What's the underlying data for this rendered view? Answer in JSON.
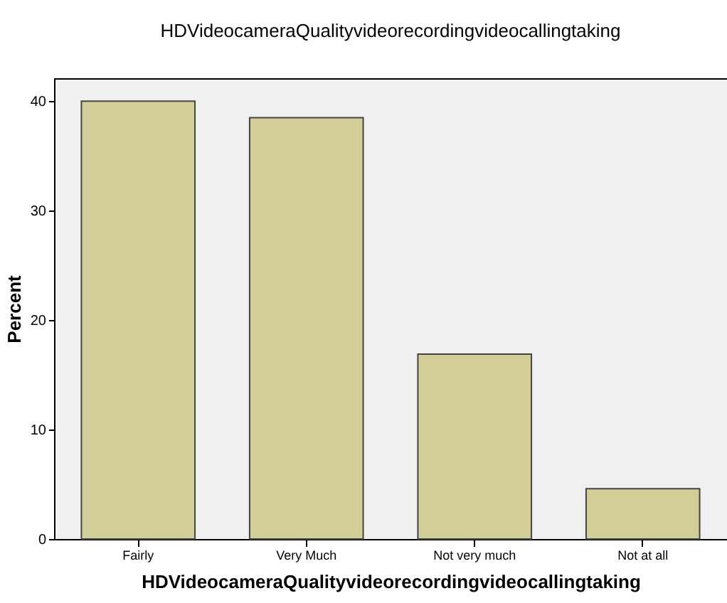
{
  "chart_data": {
    "type": "bar",
    "title": "HDVideocameraQualityvideorecordingvideocallingtaking",
    "xlabel": "HDVideocameraQualityvideorecordingvideocallingtaking",
    "ylabel": "Percent",
    "categories": [
      "Fairly",
      "Very Much",
      "Not very much",
      "Not at all"
    ],
    "values": [
      40.0,
      38.5,
      16.9,
      4.6
    ],
    "color": "#d3ce97",
    "ylim": [
      0,
      42.1
    ],
    "yticks": [
      0,
      10,
      20,
      30,
      40
    ],
    "grid": false
  }
}
